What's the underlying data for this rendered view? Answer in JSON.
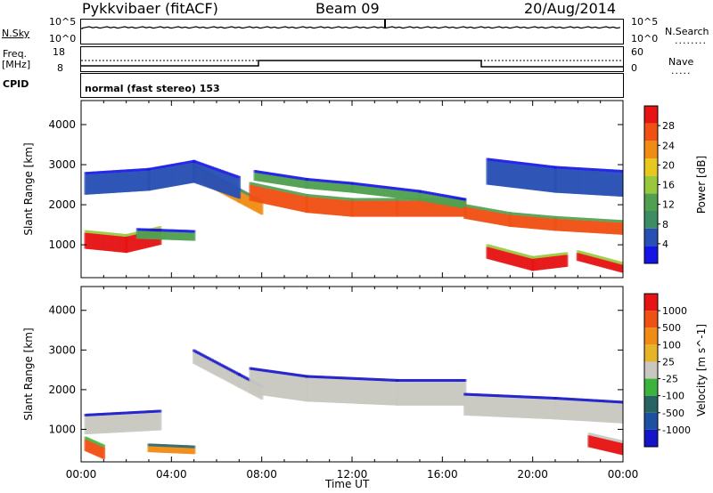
{
  "header": {
    "station": "Pykkvibaer (fitACF)",
    "beam": "Beam 09",
    "date": "20/Aug/2014"
  },
  "side_labels": {
    "nsky": "N.Sky",
    "nsky_ticks": [
      "10^5",
      "10^0"
    ],
    "nsearch": "N.Search",
    "nsearch_ticks": [
      "10^5",
      "10^0"
    ],
    "freq": "Freq.",
    "freq_unit": "[MHz]",
    "freq_ticks": [
      "18",
      "8"
    ],
    "nave": "Nave",
    "nave_ticks": [
      "60",
      "0"
    ],
    "cpid": "CPID"
  },
  "cpid_text": "normal (fast stereo) 153",
  "colors": {
    "power": [
      "#1414e6",
      "#2850b4",
      "#3c8c64",
      "#50a050",
      "#9ac83c",
      "#e6c81e",
      "#f08c14",
      "#f05014",
      "#e61414"
    ],
    "velocity": [
      "#1414c8",
      "#1e50a0",
      "#286464",
      "#3cb43c",
      "#c8c8c0",
      "#e6b428",
      "#f08c14",
      "#f05014",
      "#e61414"
    ]
  },
  "chart_data": [
    {
      "type": "heatmap",
      "name": "power",
      "xlabel": "",
      "ylabel": "Slant Range [km]",
      "xlim": [
        0,
        24
      ],
      "ylim": [
        180,
        4600
      ],
      "yticks": [
        "1000",
        "2000",
        "3000",
        "4000"
      ],
      "colorbar": {
        "label": "Power [dB]",
        "ticks": [
          "28",
          "24",
          "20",
          "16",
          "12",
          "8",
          "4"
        ]
      },
      "bands": [
        {
          "x": [
            0.2,
            2.0,
            3.5
          ],
          "y": [
            1100,
            1000,
            1200
          ],
          "w": 400,
          "level": 8
        },
        {
          "x": [
            2.5,
            5.0
          ],
          "y": [
            1250,
            1200
          ],
          "w": 200,
          "level": 3
        },
        {
          "x": [
            5.0,
            7.0,
            8.0
          ],
          "y": [
            2800,
            2200,
            1900
          ],
          "w": 300,
          "level": 6
        },
        {
          "x": [
            7.5,
            10.0,
            12.0,
            14.0,
            17.0
          ],
          "y": [
            2300,
            2000,
            1900,
            1900,
            1900
          ],
          "w": 400,
          "level": 7
        },
        {
          "x": [
            7.7,
            10.0,
            12.0,
            15.0,
            17.0
          ],
          "y": [
            2700,
            2500,
            2400,
            2200,
            2000
          ],
          "w": 200,
          "level": 3
        },
        {
          "x": [
            17.0,
            19.0,
            21.0,
            24.0
          ],
          "y": [
            1800,
            1600,
            1500,
            1400
          ],
          "w": 300,
          "level": 7
        },
        {
          "x": [
            18.0,
            20.0,
            21.5
          ],
          "y": [
            800,
            500,
            600
          ],
          "w": 300,
          "level": 8
        },
        {
          "x": [
            0.2,
            3.0,
            5.0,
            7.0
          ],
          "y": [
            2500,
            2600,
            2800,
            2400
          ],
          "w": 500,
          "level": 1
        },
        {
          "x": [
            18.0,
            21.0,
            24.0
          ],
          "y": [
            2800,
            2600,
            2500
          ],
          "w": 600,
          "level": 1
        },
        {
          "x": [
            22.0,
            24.0
          ],
          "y": [
            700,
            400
          ],
          "w": 200,
          "level": 8
        }
      ]
    },
    {
      "type": "heatmap",
      "name": "velocity",
      "xlabel": "Time UT",
      "ylabel": "Slant Range [km]",
      "xlim": [
        0,
        24
      ],
      "ylim": [
        180,
        4600
      ],
      "xticks": [
        "00:00",
        "04:00",
        "08:00",
        "12:00",
        "16:00",
        "20:00",
        "00:00"
      ],
      "yticks": [
        "1000",
        "2000",
        "3000",
        "4000"
      ],
      "colorbar": {
        "label": "Velocity [m s^-1]",
        "ticks": [
          "1000",
          "500",
          "100",
          "25",
          "-25",
          "-100",
          "-500",
          "-1000"
        ]
      },
      "bands": [
        {
          "x": [
            0.2,
            3.5
          ],
          "y": [
            1100,
            1200
          ],
          "w": 450,
          "level": 4
        },
        {
          "x": [
            5.0,
            7.0,
            8.0
          ],
          "y": [
            2800,
            2200,
            1900
          ],
          "w": 300,
          "level": 4
        },
        {
          "x": [
            7.5,
            10.0,
            14.0,
            17.0
          ],
          "y": [
            2200,
            2000,
            1900,
            1900
          ],
          "w": 600,
          "level": 4
        },
        {
          "x": [
            17.0,
            21.0,
            24.0
          ],
          "y": [
            1600,
            1500,
            1400
          ],
          "w": 500,
          "level": 4
        },
        {
          "x": [
            0.2,
            1.0
          ],
          "y": [
            600,
            400
          ],
          "w": 300,
          "level": 7
        },
        {
          "x": [
            22.5,
            24.0
          ],
          "y": [
            700,
            500
          ],
          "w": 300,
          "level": 8
        },
        {
          "x": [
            3.0,
            5.0
          ],
          "y": [
            500,
            450
          ],
          "w": 150,
          "level": 6
        }
      ]
    }
  ]
}
